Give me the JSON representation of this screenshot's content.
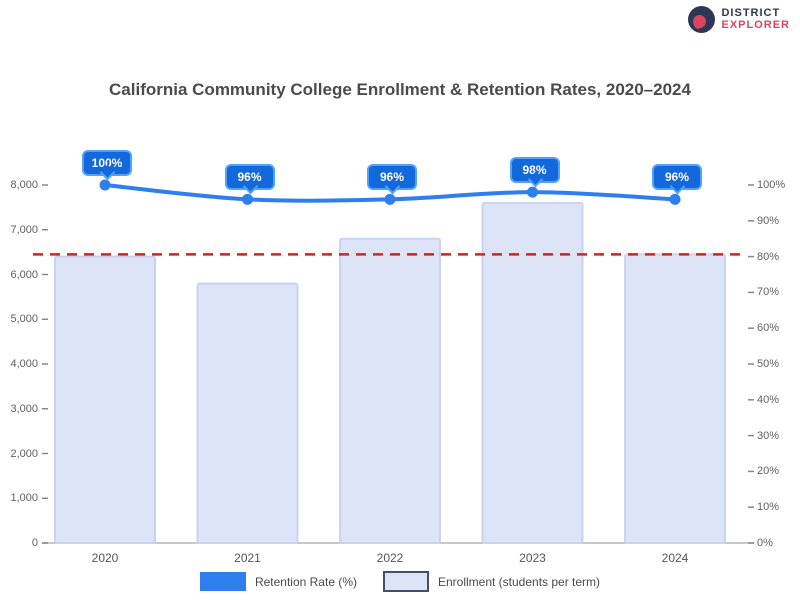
{
  "logo": {
    "line1": "DISTRICT",
    "line2": "EXPLORER",
    "navy": "#2d3654",
    "red": "#d9455f"
  },
  "chart_data": {
    "type": "bar+line",
    "title": "California Community College Enrollment & Retention Rates, 2020–2024",
    "categories": [
      "2020",
      "2021",
      "2022",
      "2023",
      "2024"
    ],
    "series": [
      {
        "name": "Enrollment (students per term)",
        "type": "bar",
        "axis": "left",
        "values": [
          6400,
          5800,
          6800,
          7600,
          6450
        ],
        "fill": "#dde4f8",
        "border": "#c9d3f2"
      },
      {
        "name": "Retention Rate (%)",
        "type": "line",
        "axis": "right",
        "values": [
          100,
          96,
          96,
          98,
          96
        ],
        "labels": [
          "100%",
          "96%",
          "96%",
          "98%",
          "96%"
        ],
        "color": "#2e7ef0",
        "tooltip_fill": "#1368dc",
        "tooltip_border": "#4da3ff"
      }
    ],
    "baseline_line": {
      "value": 6450,
      "color": "#e41b17",
      "style": "dashed"
    },
    "axes": {
      "left": {
        "min": 0,
        "max": 8000,
        "ticks": [
          "8,000",
          "7,000",
          "6,000",
          "5,000",
          "4,000",
          "3,000",
          "2,000",
          "1,000",
          "0"
        ]
      },
      "right": {
        "min": 0,
        "max": 100,
        "ticks": [
          "100%",
          "90%",
          "80%",
          "70%",
          "60%",
          "50%",
          "40%",
          "30%",
          "20%",
          "10%",
          "0%"
        ]
      }
    },
    "legend_position": "bottom",
    "grid": false
  }
}
